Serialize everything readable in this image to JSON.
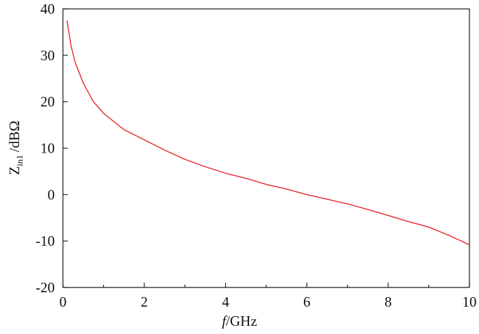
{
  "chart_data": {
    "type": "line",
    "xlabel": {
      "var": "f",
      "unit": "/GHz"
    },
    "ylabel": {
      "main": "Z",
      "sub": "in1",
      "unit": "/dBΩ"
    },
    "x": [
      0.1,
      0.2,
      0.3,
      0.5,
      0.75,
      1,
      1.5,
      2,
      2.5,
      3,
      3.5,
      4,
      4.5,
      5,
      5.5,
      6,
      6.5,
      7,
      7.5,
      8,
      8.5,
      9,
      9.5,
      10
    ],
    "series": [
      {
        "color": "#e8202a",
        "values": [
          37.5,
          32,
          28.5,
          24,
          20,
          17.5,
          14,
          11.8,
          9.6,
          7.6,
          6,
          4.6,
          3.5,
          2.2,
          1.2,
          0,
          -1,
          -2,
          -3.2,
          -4.5,
          -5.8,
          -7,
          -8.8,
          -10.8
        ]
      }
    ],
    "xlim": [
      0,
      10
    ],
    "xticks": [
      0,
      2,
      4,
      6,
      8,
      10
    ],
    "xminorticks": [
      1,
      3,
      5,
      7,
      9
    ],
    "ylim": [
      -20,
      40
    ],
    "yticks": [
      -20,
      -10,
      0,
      10,
      20,
      30,
      40
    ]
  }
}
